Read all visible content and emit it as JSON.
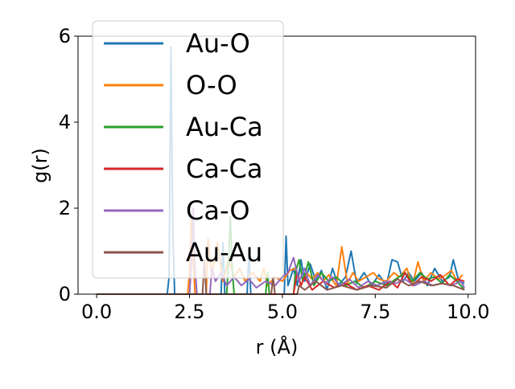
{
  "chart_data": {
    "type": "line",
    "xlabel": "r (Å)",
    "ylabel": "g(r)",
    "xlim": [
      -0.5,
      10.2
    ],
    "ylim": [
      0,
      6
    ],
    "xticks": [
      0.0,
      2.5,
      5.0,
      7.5,
      10.0
    ],
    "xtick_labels": [
      "0.0",
      "2.5",
      "5.0",
      "7.5",
      "10.0"
    ],
    "yticks": [
      0,
      2,
      4,
      6
    ],
    "ytick_labels": [
      "0",
      "2",
      "4",
      "6"
    ],
    "grid": false,
    "legend_position": "top-left",
    "series": [
      {
        "name": "Au-O",
        "color": "#1f77b4",
        "points": [
          [
            0.0,
            0
          ],
          [
            1.9,
            0
          ],
          [
            1.95,
            0.4
          ],
          [
            2.0,
            5.75
          ],
          [
            2.05,
            1.5
          ],
          [
            2.1,
            0
          ],
          [
            3.35,
            0
          ],
          [
            3.4,
            1.2
          ],
          [
            3.45,
            0
          ],
          [
            4.05,
            0
          ],
          [
            4.1,
            1.0
          ],
          [
            4.15,
            0
          ],
          [
            5.05,
            0
          ],
          [
            5.1,
            1.35
          ],
          [
            5.15,
            0.2
          ],
          [
            5.3,
            0.6
          ],
          [
            5.4,
            0.2
          ],
          [
            5.5,
            0.8
          ],
          [
            5.6,
            0.3
          ],
          [
            5.75,
            0.7
          ],
          [
            5.9,
            0.3
          ],
          [
            6.05,
            0.55
          ],
          [
            6.2,
            0.1
          ],
          [
            6.35,
            0.6
          ],
          [
            6.5,
            0.2
          ],
          [
            6.7,
            0.4
          ],
          [
            6.85,
            1.0
          ],
          [
            7.0,
            0.25
          ],
          [
            7.2,
            0.5
          ],
          [
            7.4,
            0.2
          ],
          [
            7.6,
            0.45
          ],
          [
            7.8,
            0.2
          ],
          [
            7.95,
            0.8
          ],
          [
            8.1,
            0.75
          ],
          [
            8.25,
            0.3
          ],
          [
            8.4,
            0.5
          ],
          [
            8.55,
            0.3
          ],
          [
            8.75,
            0.5
          ],
          [
            8.9,
            0.2
          ],
          [
            9.1,
            0.6
          ],
          [
            9.3,
            0.3
          ],
          [
            9.5,
            0.4
          ],
          [
            9.6,
            0.8
          ],
          [
            9.75,
            0.3
          ],
          [
            9.9,
            0.25
          ]
        ]
      },
      {
        "name": "O-O",
        "color": "#ff7f0e",
        "points": [
          [
            0.0,
            0
          ],
          [
            2.45,
            0
          ],
          [
            2.5,
            0.5
          ],
          [
            2.55,
            1.85
          ],
          [
            2.6,
            0.8
          ],
          [
            2.65,
            0
          ],
          [
            2.95,
            0
          ],
          [
            3.0,
            1.3
          ],
          [
            3.05,
            0.9
          ],
          [
            3.1,
            0.4
          ],
          [
            3.25,
            1.2
          ],
          [
            3.4,
            0.3
          ],
          [
            3.55,
            0.8
          ],
          [
            3.7,
            0.4
          ],
          [
            3.85,
            0.6
          ],
          [
            4.0,
            0.3
          ],
          [
            4.2,
            0.5
          ],
          [
            4.4,
            0.3
          ],
          [
            4.5,
            0.6
          ],
          [
            4.6,
            0.2
          ],
          [
            4.8,
            0.4
          ],
          [
            5.0,
            0.3
          ],
          [
            5.2,
            0.55
          ],
          [
            5.35,
            0.6
          ],
          [
            5.5,
            0.2
          ],
          [
            5.65,
            0.5
          ],
          [
            5.8,
            0.35
          ],
          [
            5.95,
            0.5
          ],
          [
            6.1,
            0.3
          ],
          [
            6.25,
            0.45
          ],
          [
            6.45,
            0.2
          ],
          [
            6.6,
            1.1
          ],
          [
            6.75,
            0.25
          ],
          [
            6.9,
            0.5
          ],
          [
            7.05,
            0.3
          ],
          [
            7.25,
            0.4
          ],
          [
            7.45,
            0.5
          ],
          [
            7.6,
            0.35
          ],
          [
            7.8,
            0.3
          ],
          [
            8.0,
            0.5
          ],
          [
            8.15,
            0.4
          ],
          [
            8.35,
            0.6
          ],
          [
            8.5,
            0.2
          ],
          [
            8.65,
            0.75
          ],
          [
            8.8,
            0.3
          ],
          [
            9.0,
            0.5
          ],
          [
            9.2,
            0.35
          ],
          [
            9.4,
            0.45
          ],
          [
            9.55,
            0.55
          ],
          [
            9.7,
            0.3
          ],
          [
            9.85,
            0.45
          ]
        ]
      },
      {
        "name": "Au-Ca",
        "color": "#2ca02c",
        "points": [
          [
            0.0,
            0
          ],
          [
            3.5,
            0
          ],
          [
            3.55,
            0.7
          ],
          [
            3.6,
            1.8
          ],
          [
            3.65,
            0.6
          ],
          [
            3.7,
            0
          ],
          [
            4.55,
            0
          ],
          [
            4.6,
            0.5
          ],
          [
            4.65,
            0
          ],
          [
            5.3,
            0
          ],
          [
            5.35,
            0.5
          ],
          [
            5.45,
            0.8
          ],
          [
            5.55,
            0.3
          ],
          [
            5.7,
            0.75
          ],
          [
            5.85,
            0.2
          ],
          [
            6.05,
            0.5
          ],
          [
            6.25,
            0.3
          ],
          [
            6.45,
            0.4
          ],
          [
            6.7,
            0.2
          ],
          [
            6.95,
            0.3
          ],
          [
            7.2,
            0.15
          ],
          [
            7.5,
            0.3
          ],
          [
            7.8,
            0.2
          ],
          [
            8.05,
            0.35
          ],
          [
            8.3,
            0.5
          ],
          [
            8.5,
            0.3
          ],
          [
            8.7,
            0.5
          ],
          [
            8.9,
            0.35
          ],
          [
            9.1,
            0.4
          ],
          [
            9.3,
            0.25
          ],
          [
            9.5,
            0.45
          ],
          [
            9.7,
            0.3
          ],
          [
            9.9,
            0.1
          ]
        ]
      },
      {
        "name": "Ca-Ca",
        "color": "#d62728",
        "points": [
          [
            0.0,
            0
          ],
          [
            5.3,
            0
          ],
          [
            5.4,
            0.5
          ],
          [
            5.5,
            0.2
          ],
          [
            5.6,
            0.4
          ],
          [
            5.8,
            0.1
          ],
          [
            6.1,
            0.3
          ],
          [
            6.4,
            0.15
          ],
          [
            6.7,
            0.25
          ],
          [
            7.0,
            0.1
          ],
          [
            7.3,
            0.2
          ],
          [
            7.6,
            0.1
          ],
          [
            7.9,
            0.3
          ],
          [
            8.1,
            0.15
          ],
          [
            8.3,
            0.5
          ],
          [
            8.5,
            0.2
          ],
          [
            8.75,
            0.4
          ],
          [
            9.0,
            0.3
          ],
          [
            9.25,
            0.45
          ],
          [
            9.5,
            0.2
          ],
          [
            9.7,
            0.35
          ],
          [
            9.9,
            0.3
          ]
        ]
      },
      {
        "name": "Ca-O",
        "color": "#9467bd",
        "points": [
          [
            0.0,
            0
          ],
          [
            2.5,
            0
          ],
          [
            2.55,
            0.7
          ],
          [
            2.6,
            2.0
          ],
          [
            2.65,
            0.6
          ],
          [
            2.7,
            0
          ],
          [
            3.05,
            0
          ],
          [
            3.1,
            0.6
          ],
          [
            3.2,
            0.3
          ],
          [
            3.35,
            0.5
          ],
          [
            3.5,
            0.2
          ],
          [
            3.7,
            0.4
          ],
          [
            3.9,
            0.2
          ],
          [
            4.1,
            0.35
          ],
          [
            4.3,
            0.15
          ],
          [
            4.55,
            0.3
          ],
          [
            4.8,
            0.2
          ],
          [
            5.0,
            0.4
          ],
          [
            5.15,
            0.5
          ],
          [
            5.3,
            0.85
          ],
          [
            5.45,
            0.3
          ],
          [
            5.6,
            0.6
          ],
          [
            5.75,
            0.2
          ],
          [
            5.95,
            0.45
          ],
          [
            6.15,
            0.25
          ],
          [
            6.35,
            0.4
          ],
          [
            6.55,
            0.2
          ],
          [
            6.8,
            0.35
          ],
          [
            7.05,
            0.15
          ],
          [
            7.3,
            0.3
          ],
          [
            7.55,
            0.2
          ],
          [
            7.8,
            0.3
          ],
          [
            8.05,
            0.25
          ],
          [
            8.3,
            0.35
          ],
          [
            8.55,
            0.2
          ],
          [
            8.8,
            0.3
          ],
          [
            9.05,
            0.2
          ],
          [
            9.3,
            0.25
          ],
          [
            9.55,
            0.2
          ],
          [
            9.8,
            0.3
          ],
          [
            9.9,
            0.15
          ]
        ]
      },
      {
        "name": "Au-Au",
        "color": "#8c564b",
        "points": [
          [
            0.0,
            0
          ],
          [
            2.85,
            0
          ],
          [
            2.9,
            0.8
          ],
          [
            2.95,
            0
          ],
          [
            4.7,
            0
          ],
          [
            4.75,
            0.4
          ],
          [
            4.8,
            0
          ],
          [
            5.4,
            0
          ],
          [
            5.45,
            0.2
          ],
          [
            5.6,
            0.1
          ],
          [
            5.9,
            0.3
          ],
          [
            6.2,
            0.1
          ],
          [
            6.6,
            0.2
          ],
          [
            7.0,
            0.1
          ],
          [
            7.4,
            0.2
          ],
          [
            7.8,
            0.15
          ],
          [
            8.1,
            0.35
          ],
          [
            8.4,
            0.2
          ],
          [
            8.7,
            0.3
          ],
          [
            9.0,
            0.2
          ],
          [
            9.3,
            0.25
          ],
          [
            9.6,
            0.2
          ],
          [
            9.9,
            0.1
          ]
        ]
      }
    ]
  }
}
